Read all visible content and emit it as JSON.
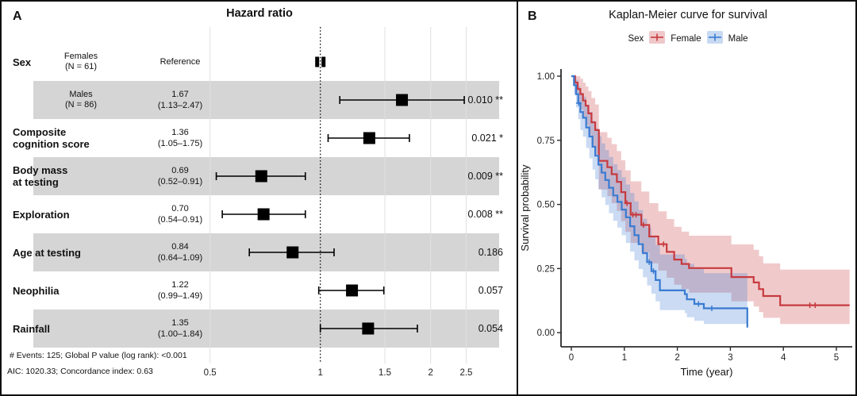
{
  "panel_a": {
    "label": "A",
    "title": "Hazard ratio",
    "footnotes": [
      "# Events: 125; Global P value (log rank): <0.001",
      "AIC: 1020.33; Concordance index: 0.63"
    ],
    "colors": {
      "row_band": "#d5d5d5",
      "gridline": "#e0e0e0",
      "marker": "#000000"
    }
  },
  "panel_b": {
    "label": "B",
    "title": "Kaplan-Meier curve for survival",
    "legend": {
      "title": "Sex",
      "items": [
        {
          "label": "Female"
        },
        {
          "label": "Male"
        }
      ]
    },
    "xlabel": "Time (year)",
    "ylabel": "Survival probability"
  },
  "chart_data": [
    {
      "type": "scatter",
      "subtype": "forest-plot",
      "title": "Hazard ratio",
      "x_scale": "log",
      "x_ticks": [
        0.5,
        1,
        1.5,
        2,
        2.5
      ],
      "reference_line": 1,
      "rows": [
        {
          "variable_lines": [
            "Sex"
          ],
          "group_lines": [
            "Females",
            "(N = 61)"
          ],
          "estimate_lines": [
            "Reference"
          ],
          "hr": 1.0,
          "ci_low": null,
          "ci_high": null,
          "p_value": "",
          "shaded": false
        },
        {
          "variable_lines": [],
          "group_lines": [
            "Males",
            "(N = 86)"
          ],
          "estimate_lines": [
            "1.67",
            "(1.13–2.47)"
          ],
          "hr": 1.67,
          "ci_low": 1.13,
          "ci_high": 2.47,
          "p_value": "0.010 **",
          "shaded": true
        },
        {
          "variable_lines": [
            "Composite",
            "cognition score"
          ],
          "group_lines": [],
          "estimate_lines": [
            "1.36",
            "(1.05–1.75)"
          ],
          "hr": 1.36,
          "ci_low": 1.05,
          "ci_high": 1.75,
          "p_value": "0.021 *",
          "shaded": false
        },
        {
          "variable_lines": [
            "Body mass",
            "at testing"
          ],
          "group_lines": [],
          "estimate_lines": [
            "0.69",
            "(0.52–0.91)"
          ],
          "hr": 0.69,
          "ci_low": 0.52,
          "ci_high": 0.91,
          "p_value": "0.009 **",
          "shaded": true
        },
        {
          "variable_lines": [
            "Exploration"
          ],
          "group_lines": [],
          "estimate_lines": [
            "0.70",
            "(0.54–0.91)"
          ],
          "hr": 0.7,
          "ci_low": 0.54,
          "ci_high": 0.91,
          "p_value": "0.008 **",
          "shaded": false
        },
        {
          "variable_lines": [
            "Age at testing"
          ],
          "group_lines": [],
          "estimate_lines": [
            "0.84",
            "(0.64–1.09)"
          ],
          "hr": 0.84,
          "ci_low": 0.64,
          "ci_high": 1.09,
          "p_value": "0.186",
          "shaded": true
        },
        {
          "variable_lines": [
            "Neophilia"
          ],
          "group_lines": [],
          "estimate_lines": [
            "1.22",
            "(0.99–1.49)"
          ],
          "hr": 1.22,
          "ci_low": 0.99,
          "ci_high": 1.49,
          "p_value": "0.057",
          "shaded": false
        },
        {
          "variable_lines": [
            "Rainfall"
          ],
          "group_lines": [],
          "estimate_lines": [
            "1.35",
            "(1.00–1.84)"
          ],
          "hr": 1.35,
          "ci_low": 1.0,
          "ci_high": 1.84,
          "p_value": "0.054",
          "shaded": true
        }
      ]
    },
    {
      "type": "line",
      "subtype": "kaplan-meier-step",
      "title": "Kaplan-Meier curve for survival",
      "xlabel": "Time (year)",
      "ylabel": "Survival probability",
      "xlim": [
        0,
        5.25
      ],
      "ylim": [
        0,
        1
      ],
      "x_ticks": [
        0,
        1,
        2,
        3,
        4,
        5
      ],
      "y_ticks": [
        "0.00",
        "0.25",
        "0.50",
        "0.75",
        "1.00"
      ],
      "grid": false,
      "legend_position": "top",
      "series": [
        {
          "name": "Female",
          "color": "#c73a3f",
          "band_opacity": 0.27,
          "points": [
            [
              0.0,
              1.0,
              1.0,
              1.0
            ],
            [
              0.07,
              0.975,
              0.935,
              1.0
            ],
            [
              0.12,
              0.95,
              0.9,
              1.0
            ],
            [
              0.17,
              0.93,
              0.87,
              0.99
            ],
            [
              0.22,
              0.905,
              0.838,
              0.975
            ],
            [
              0.27,
              0.885,
              0.81,
              0.96
            ],
            [
              0.32,
              0.855,
              0.772,
              0.942
            ],
            [
              0.38,
              0.82,
              0.73,
              0.915
            ],
            [
              0.45,
              0.79,
              0.695,
              0.89
            ],
            [
              0.52,
              0.67,
              0.558,
              0.782
            ],
            [
              0.68,
              0.645,
              0.532,
              0.76
            ],
            [
              0.76,
              0.618,
              0.505,
              0.735
            ],
            [
              0.86,
              0.588,
              0.475,
              0.708
            ],
            [
              0.94,
              0.548,
              0.435,
              0.672
            ],
            [
              1.02,
              0.505,
              0.393,
              0.633
            ],
            [
              1.12,
              0.46,
              0.35,
              0.59
            ],
            [
              1.32,
              0.42,
              0.313,
              0.55
            ],
            [
              1.47,
              0.375,
              0.27,
              0.505
            ],
            [
              1.64,
              0.345,
              0.242,
              0.473
            ],
            [
              1.8,
              0.315,
              0.214,
              0.443
            ],
            [
              1.94,
              0.285,
              0.187,
              0.413
            ],
            [
              2.08,
              0.268,
              0.17,
              0.394
            ],
            [
              2.22,
              0.252,
              0.156,
              0.378
            ],
            [
              3.02,
              0.217,
              0.122,
              0.344
            ],
            [
              3.44,
              0.196,
              0.102,
              0.323
            ],
            [
              3.54,
              0.17,
              0.08,
              0.298
            ],
            [
              3.62,
              0.143,
              0.058,
              0.27
            ],
            [
              3.94,
              0.107,
              0.034,
              0.246
            ],
            [
              5.25,
              0.107,
              0.034,
              0.246
            ]
          ],
          "censor_marks": [
            [
              1.05,
              0.505
            ],
            [
              1.16,
              0.46
            ],
            [
              1.22,
              0.46
            ],
            [
              1.36,
              0.42
            ],
            [
              1.74,
              0.345
            ],
            [
              4.5,
              0.107
            ],
            [
              4.6,
              0.107
            ]
          ]
        },
        {
          "name": "Male",
          "color": "#3a7bd2",
          "band_opacity": 0.27,
          "points": [
            [
              0.0,
              1.0,
              1.0,
              1.0
            ],
            [
              0.05,
              0.965,
              0.928,
              1.0
            ],
            [
              0.09,
              0.93,
              0.878,
              0.985
            ],
            [
              0.13,
              0.895,
              0.832,
              0.962
            ],
            [
              0.17,
              0.86,
              0.79,
              0.936
            ],
            [
              0.22,
              0.838,
              0.764,
              0.92
            ],
            [
              0.28,
              0.8,
              0.72,
              0.888
            ],
            [
              0.34,
              0.765,
              0.68,
              0.86
            ],
            [
              0.4,
              0.725,
              0.636,
              0.826
            ],
            [
              0.45,
              0.69,
              0.598,
              0.796
            ],
            [
              0.51,
              0.655,
              0.56,
              0.766
            ],
            [
              0.57,
              0.624,
              0.528,
              0.738
            ],
            [
              0.64,
              0.595,
              0.498,
              0.712
            ],
            [
              0.71,
              0.565,
              0.466,
              0.685
            ],
            [
              0.79,
              0.535,
              0.436,
              0.657
            ],
            [
              0.87,
              0.51,
              0.41,
              0.634
            ],
            [
              0.95,
              0.48,
              0.38,
              0.606
            ],
            [
              1.03,
              0.45,
              0.35,
              0.578
            ],
            [
              1.11,
              0.415,
              0.316,
              0.545
            ],
            [
              1.19,
              0.38,
              0.282,
              0.512
            ],
            [
              1.27,
              0.345,
              0.248,
              0.478
            ],
            [
              1.35,
              0.31,
              0.216,
              0.444
            ],
            [
              1.43,
              0.275,
              0.184,
              0.41
            ],
            [
              1.51,
              0.24,
              0.152,
              0.376
            ],
            [
              1.59,
              0.205,
              0.122,
              0.342
            ],
            [
              1.67,
              0.165,
              0.088,
              0.305
            ],
            [
              2.14,
              0.15,
              0.076,
              0.288
            ],
            [
              2.18,
              0.13,
              0.06,
              0.268
            ],
            [
              2.32,
              0.112,
              0.046,
              0.25
            ],
            [
              2.5,
              0.095,
              0.034,
              0.232
            ],
            [
              3.28,
              0.095,
              0.034,
              0.232
            ],
            [
              3.32,
              0.02,
              0.0,
              0.14
            ]
          ],
          "censor_marks": [
            [
              0.14,
              0.895
            ],
            [
              1.47,
              0.275
            ],
            [
              1.55,
              0.24
            ],
            [
              2.4,
              0.112
            ],
            [
              2.65,
              0.095
            ]
          ]
        }
      ]
    }
  ]
}
